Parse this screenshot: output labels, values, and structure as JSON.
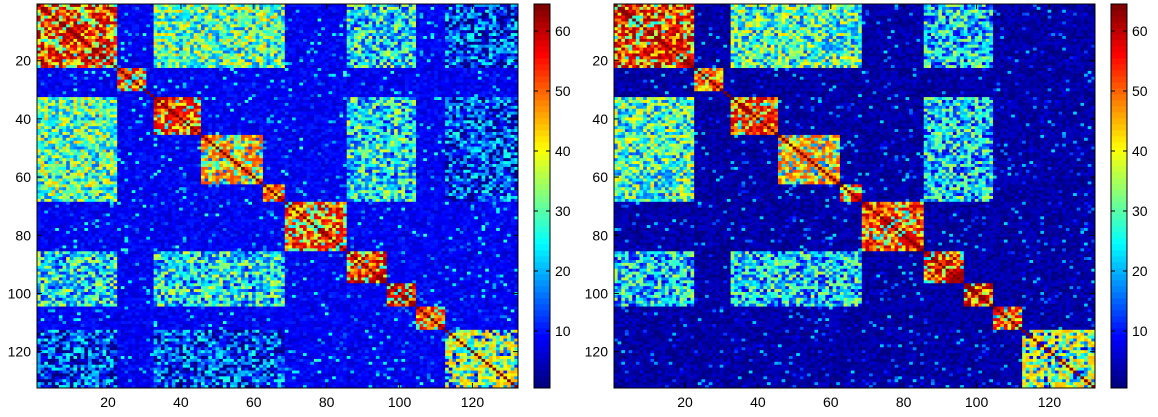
{
  "chart_data": [
    {
      "type": "heatmap",
      "title": "",
      "xlabel": "",
      "ylabel": "",
      "matrix_size": 132,
      "xlim": [
        0.5,
        132.5
      ],
      "ylim": [
        0.5,
        132.5
      ],
      "x_ticks": [
        "20",
        "40",
        "60",
        "80",
        "100",
        "120"
      ],
      "y_ticks": [
        "20",
        "40",
        "60",
        "80",
        "100",
        "120"
      ],
      "colorbar": {
        "ticks": [
          "10",
          "20",
          "30",
          "40",
          "50",
          "60"
        ],
        "range": [
          1,
          64
        ],
        "colormap": "jet"
      },
      "blocks": [
        {
          "start": 1,
          "end": 22,
          "level": 62
        },
        {
          "start": 23,
          "end": 30,
          "level": 58
        },
        {
          "start": 33,
          "end": 45,
          "level": 60
        },
        {
          "start": 46,
          "end": 62,
          "level": 52
        },
        {
          "start": 63,
          "end": 68,
          "level": 58
        },
        {
          "start": 69,
          "end": 85,
          "level": 60
        },
        {
          "start": 86,
          "end": 96,
          "level": 62
        },
        {
          "start": 97,
          "end": 104,
          "level": 62
        },
        {
          "start": 105,
          "end": 112,
          "level": 58
        },
        {
          "start": 113,
          "end": 132,
          "level": 45
        }
      ],
      "cross_bands": [
        {
          "a": [
            1,
            22
          ],
          "b": [
            33,
            68
          ],
          "level": 30
        },
        {
          "a": [
            1,
            22
          ],
          "b": [
            86,
            104
          ],
          "level": 24
        },
        {
          "a": [
            33,
            68
          ],
          "b": [
            86,
            104
          ],
          "level": 24
        },
        {
          "a": [
            1,
            22
          ],
          "b": [
            113,
            132
          ],
          "level": 12
        },
        {
          "a": [
            33,
            68
          ],
          "b": [
            113,
            132
          ],
          "level": 12
        }
      ],
      "background_level": 8
    },
    {
      "type": "heatmap",
      "title": "",
      "xlabel": "",
      "ylabel": "",
      "matrix_size": 132,
      "xlim": [
        0.5,
        132.5
      ],
      "ylim": [
        0.5,
        132.5
      ],
      "x_ticks": [
        "20",
        "40",
        "60",
        "80",
        "100",
        "120"
      ],
      "y_ticks": [
        "20",
        "40",
        "60",
        "80",
        "100",
        "120"
      ],
      "colorbar": {
        "ticks": [
          "10",
          "20",
          "30",
          "40",
          "50",
          "60"
        ],
        "range": [
          1,
          64
        ],
        "colormap": "jet"
      },
      "blocks": [
        {
          "start": 1,
          "end": 22,
          "level": 62
        },
        {
          "start": 23,
          "end": 30,
          "level": 58
        },
        {
          "start": 33,
          "end": 45,
          "level": 60
        },
        {
          "start": 46,
          "end": 62,
          "level": 52
        },
        {
          "start": 63,
          "end": 68,
          "level": 58
        },
        {
          "start": 69,
          "end": 85,
          "level": 60
        },
        {
          "start": 86,
          "end": 96,
          "level": 62
        },
        {
          "start": 97,
          "end": 104,
          "level": 62
        },
        {
          "start": 105,
          "end": 112,
          "level": 58
        },
        {
          "start": 113,
          "end": 132,
          "level": 45
        }
      ],
      "cross_bands": [
        {
          "a": [
            1,
            22
          ],
          "b": [
            33,
            68
          ],
          "level": 28
        },
        {
          "a": [
            1,
            22
          ],
          "b": [
            86,
            104
          ],
          "level": 22
        },
        {
          "a": [
            33,
            68
          ],
          "b": [
            86,
            104
          ],
          "level": 22
        }
      ],
      "background_level": 3
    }
  ]
}
